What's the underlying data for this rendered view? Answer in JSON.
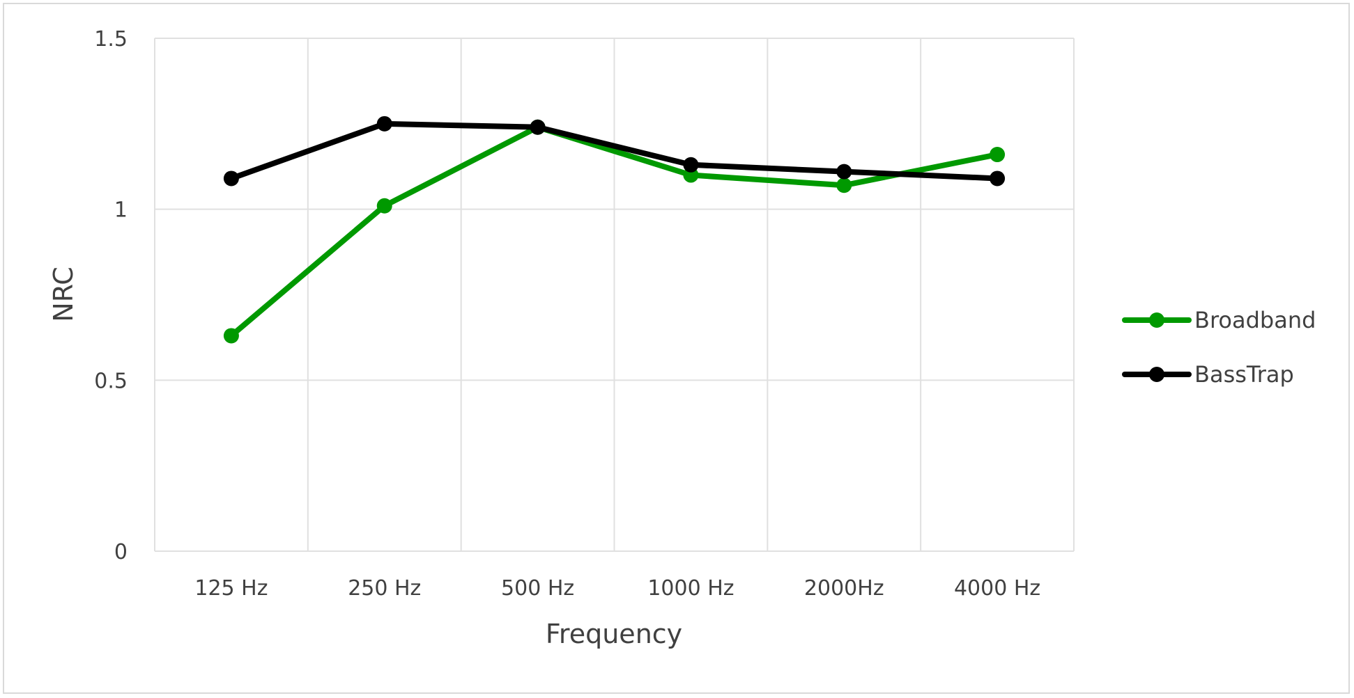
{
  "chart_data": {
    "type": "line",
    "title": "",
    "xlabel": "Frequency",
    "ylabel": "NRC",
    "categories": [
      "125 Hz",
      "250 Hz",
      "500 Hz",
      "1000 Hz",
      "2000Hz",
      "4000 Hz"
    ],
    "ylim": [
      0,
      1.5
    ],
    "yticks": [
      "0",
      "0.5",
      "1",
      "1.5"
    ],
    "ytick_values": [
      0,
      0.5,
      1,
      1.5
    ],
    "grid": true,
    "legend_position": "right",
    "series": [
      {
        "name": "Broadband",
        "color": "#009900",
        "values": [
          0.63,
          1.01,
          1.24,
          1.1,
          1.07,
          1.16
        ]
      },
      {
        "name": "BassTrap",
        "color": "#000000",
        "values": [
          1.09,
          1.25,
          1.24,
          1.13,
          1.11,
          1.09
        ]
      }
    ]
  }
}
